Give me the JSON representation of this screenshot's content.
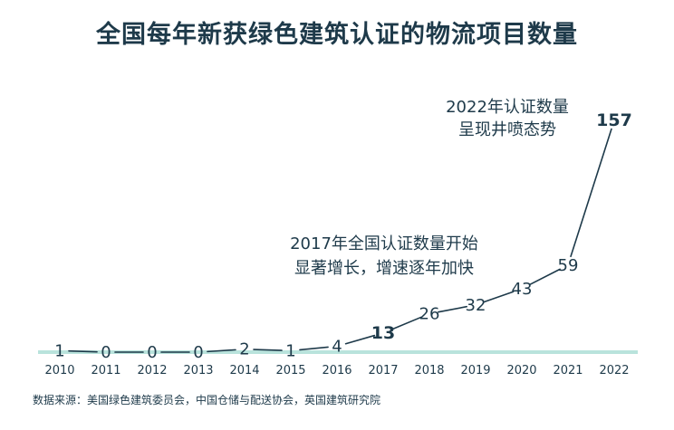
{
  "chart_data": {
    "type": "line",
    "title": "全国每年新获绿色建筑认证的物流项目数量",
    "categories": [
      "2010",
      "2011",
      "2012",
      "2013",
      "2014",
      "2015",
      "2016",
      "2017",
      "2018",
      "2019",
      "2020",
      "2021",
      "2022"
    ],
    "values": [
      1,
      0,
      0,
      0,
      2,
      1,
      4,
      13,
      26,
      32,
      43,
      59,
      157
    ],
    "value_labels": [
      "1",
      "0",
      "0",
      "0",
      "2",
      "1",
      "4",
      "13",
      "26",
      "32",
      "43",
      "59",
      "157"
    ],
    "bold_points": [
      "2017",
      "2022"
    ],
    "annotations": [
      {
        "lines": [
          "2022年认证数量",
          "呈现井喷态势"
        ]
      },
      {
        "lines": [
          "2017年全国认证数量开始",
          "显著增长，增速逐年加快"
        ]
      }
    ],
    "source": "数据来源：美国绿色建筑委员会，中国仓储与配送协会，英国建筑研究院",
    "colors": {
      "line": "#1e3a4a",
      "baseline": "#b9e3dc",
      "text": "#1e3a4a"
    }
  }
}
